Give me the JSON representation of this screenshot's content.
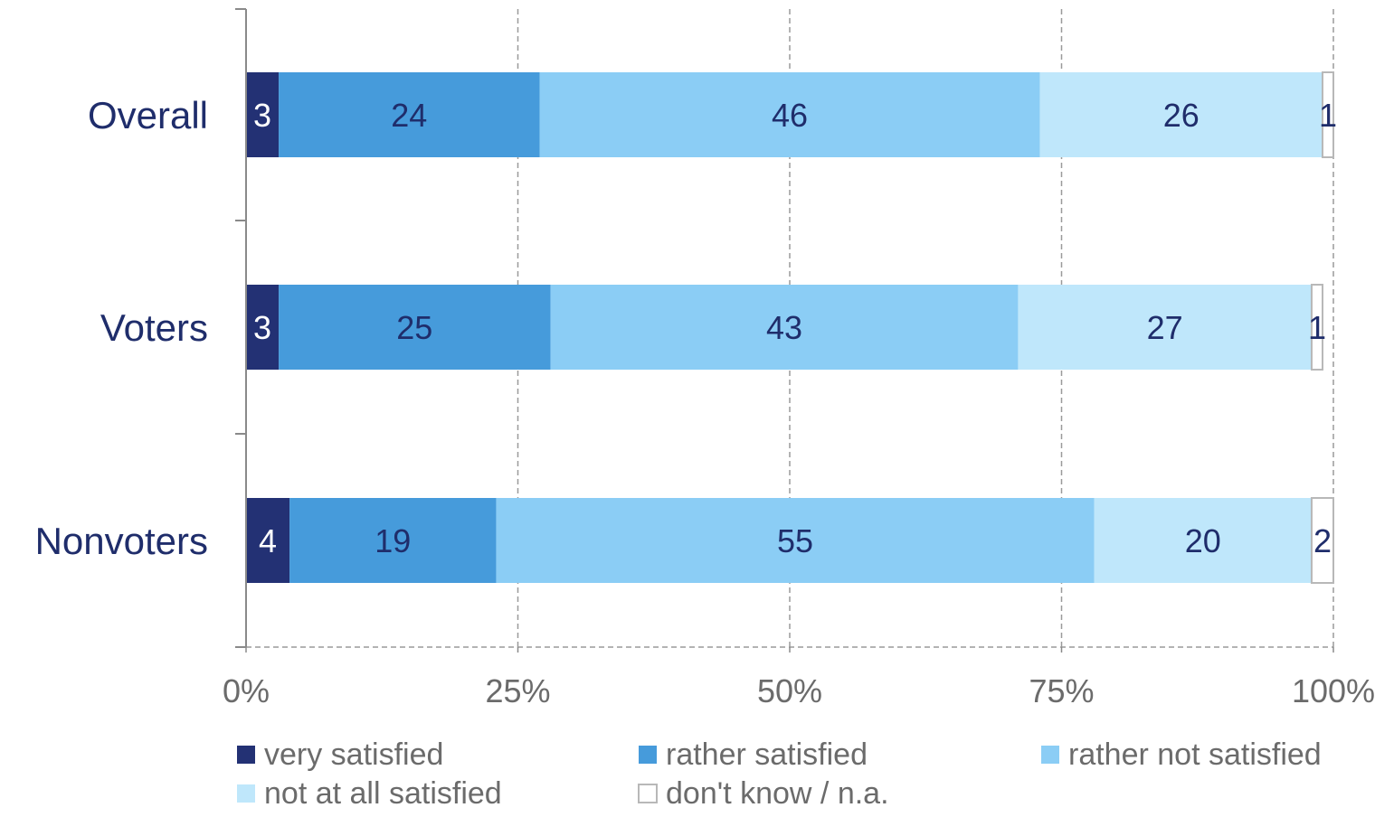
{
  "chart_data": {
    "type": "bar",
    "orientation": "horizontal",
    "stacked": true,
    "categories": [
      "Overall",
      "Voters",
      "Nonvoters"
    ],
    "series": [
      {
        "name": "very satisfied",
        "values": [
          3,
          3,
          4
        ],
        "color": "#233174",
        "label_color": "#ffffff"
      },
      {
        "name": "rather satisfied",
        "values": [
          24,
          25,
          19
        ],
        "color": "#469bdb",
        "label_color": "#1f2d6b"
      },
      {
        "name": "rather not satisfied",
        "values": [
          46,
          43,
          55
        ],
        "color": "#8bcdf5",
        "label_color": "#1f2d6b"
      },
      {
        "name": "not at all satisfied",
        "values": [
          26,
          27,
          20
        ],
        "color": "#bfe7fb",
        "label_color": "#1f2d6b"
      },
      {
        "name": "don't know / n.a.",
        "values": [
          1,
          1,
          2
        ],
        "color": "#ffffff",
        "label_color": "#1f2d6b",
        "border": "#b8b8b8"
      }
    ],
    "x_ticks": [
      "0%",
      "25%",
      "50%",
      "75%",
      "100%"
    ],
    "xlim": [
      0,
      100
    ],
    "grid": true,
    "legend": "bottom"
  }
}
